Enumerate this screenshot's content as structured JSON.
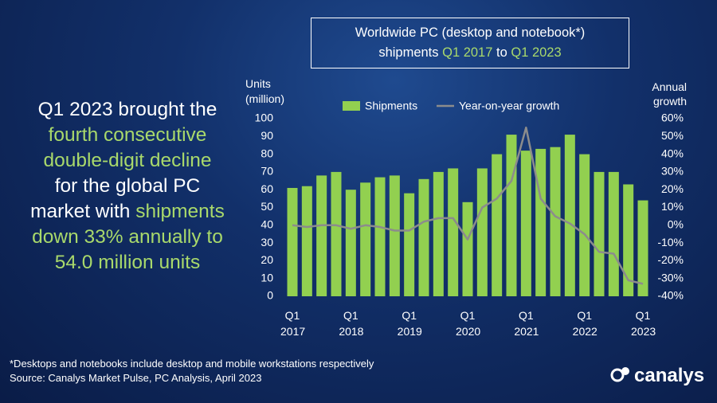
{
  "headline": [
    [
      {
        "text": "Q1 2023 brought the",
        "color": "#ffffff"
      }
    ],
    [
      {
        "text": "fourth consecutive",
        "color": "#a9d96b"
      }
    ],
    [
      {
        "text": "double-digit decline",
        "color": "#a9d96b"
      }
    ],
    [
      {
        "text": "for the global PC",
        "color": "#ffffff"
      }
    ],
    [
      {
        "text": "market with ",
        "color": "#ffffff"
      },
      {
        "text": "shipments",
        "color": "#a9d96b"
      }
    ],
    [
      {
        "text": "down 33% annually to",
        "color": "#a9d96b"
      }
    ],
    [
      {
        "text": "54.0 million units",
        "color": "#a9d96b"
      }
    ]
  ],
  "footnote": "*Desktops and notebooks include desktop and mobile workstations respectively",
  "source": "Source: Canalys Market Pulse, PC Analysis, April 2023",
  "logo": "canalys",
  "chart_data": {
    "type": "bar",
    "title": [
      [
        {
          "text": "Worldwide PC (desktop and notebook*)",
          "color": "#ffffff"
        }
      ],
      [
        {
          "text": "shipments ",
          "color": "#ffffff"
        },
        {
          "text": "Q1 2017",
          "color": "#a9d96b"
        },
        {
          "text": " to ",
          "color": "#ffffff"
        },
        {
          "text": "Q1 2023",
          "color": "#a9d96b"
        }
      ]
    ],
    "y_label": "Units (million)",
    "y2_label": "Annual growth",
    "categories": [
      "Q1 2017",
      null,
      null,
      null,
      "Q1 2018",
      null,
      null,
      null,
      "Q1 2019",
      null,
      null,
      null,
      "Q1 2020",
      null,
      null,
      null,
      "Q1 2021",
      null,
      null,
      null,
      "Q1 2022",
      null,
      null,
      null,
      "Q1 2023"
    ],
    "series": [
      {
        "name": "Shipments",
        "color": "#92d050",
        "values": [
          61,
          62,
          68,
          70,
          60,
          64,
          67,
          68,
          58,
          66,
          70,
          72,
          53,
          72,
          80,
          91,
          82,
          83,
          84,
          91,
          80,
          70,
          70,
          63,
          54
        ]
      },
      {
        "name": "Year-on-year growth",
        "color": "#8c8c8c",
        "type": "line",
        "axis": "y2",
        "values": [
          0,
          -1,
          0,
          0,
          -2,
          0,
          -1,
          -3,
          -3,
          2,
          4,
          4,
          -8,
          10,
          15,
          25,
          55,
          15,
          5,
          1,
          -5,
          -15,
          -16,
          -31,
          -33
        ]
      }
    ],
    "ylim": [
      0,
      100
    ],
    "yticks": [
      0,
      10,
      20,
      30,
      40,
      50,
      60,
      70,
      80,
      90,
      100
    ],
    "y2lim": [
      -40,
      60
    ],
    "y2ticks": [
      {
        "value": -40,
        "label": "-40%"
      },
      {
        "value": -30,
        "label": "-30%"
      },
      {
        "value": -20,
        "label": "-20%"
      },
      {
        "value": -10,
        "label": "-10%"
      },
      {
        "value": 0,
        "label": "0%"
      },
      {
        "value": 10,
        "label": "10%"
      },
      {
        "value": 20,
        "label": "20%"
      },
      {
        "value": 30,
        "label": "30%"
      },
      {
        "value": 40,
        "label": "40%"
      },
      {
        "value": 50,
        "label": "50%"
      },
      {
        "value": 60,
        "label": "60%"
      }
    ]
  }
}
